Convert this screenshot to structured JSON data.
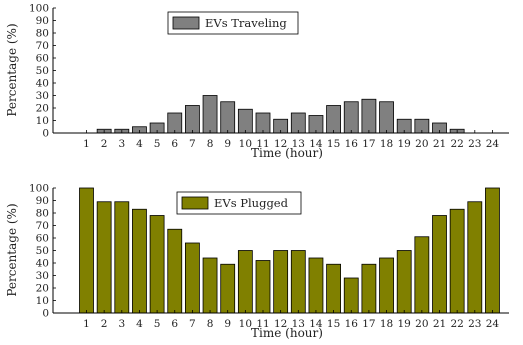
{
  "chart_data": [
    {
      "type": "bar",
      "categories": [
        "1",
        "2",
        "3",
        "4",
        "5",
        "6",
        "7",
        "8",
        "9",
        "10",
        "11",
        "12",
        "13",
        "14",
        "15",
        "16",
        "17",
        "18",
        "19",
        "20",
        "21",
        "22",
        "23",
        "24"
      ],
      "series": [
        {
          "name": "EVs Traveling",
          "color": "#808080",
          "values": [
            0,
            3,
            3,
            5,
            8,
            16,
            22,
            30,
            25,
            19,
            16,
            11,
            16,
            14,
            22,
            25,
            27,
            25,
            11,
            11,
            8,
            3,
            0,
            0
          ]
        }
      ],
      "xlabel": "Time (hour)",
      "ylabel": "Percentage (%)",
      "ylim": [
        0,
        100
      ],
      "yticks": [
        "0",
        "10",
        "20",
        "30",
        "40",
        "50",
        "60",
        "70",
        "80",
        "90",
        "100"
      ],
      "legend_position": "top-left",
      "grid": false
    },
    {
      "type": "bar",
      "categories": [
        "1",
        "2",
        "3",
        "4",
        "5",
        "6",
        "7",
        "8",
        "9",
        "10",
        "11",
        "12",
        "13",
        "14",
        "15",
        "16",
        "17",
        "18",
        "19",
        "20",
        "21",
        "22",
        "23",
        "24"
      ],
      "series": [
        {
          "name": "EVs Plugged",
          "color": "#808000",
          "values": [
            100,
            89,
            89,
            83,
            78,
            67,
            56,
            44,
            39,
            50,
            42,
            50,
            50,
            44,
            39,
            28,
            39,
            44,
            50,
            61,
            78,
            83,
            89,
            100
          ]
        }
      ],
      "xlabel": "Time (hour)",
      "ylabel": "Percentage (%)",
      "ylim": [
        0,
        100
      ],
      "yticks": [
        "0",
        "10",
        "20",
        "30",
        "40",
        "50",
        "60",
        "70",
        "80",
        "90",
        "100"
      ],
      "legend_position": "top-left",
      "grid": false
    }
  ]
}
